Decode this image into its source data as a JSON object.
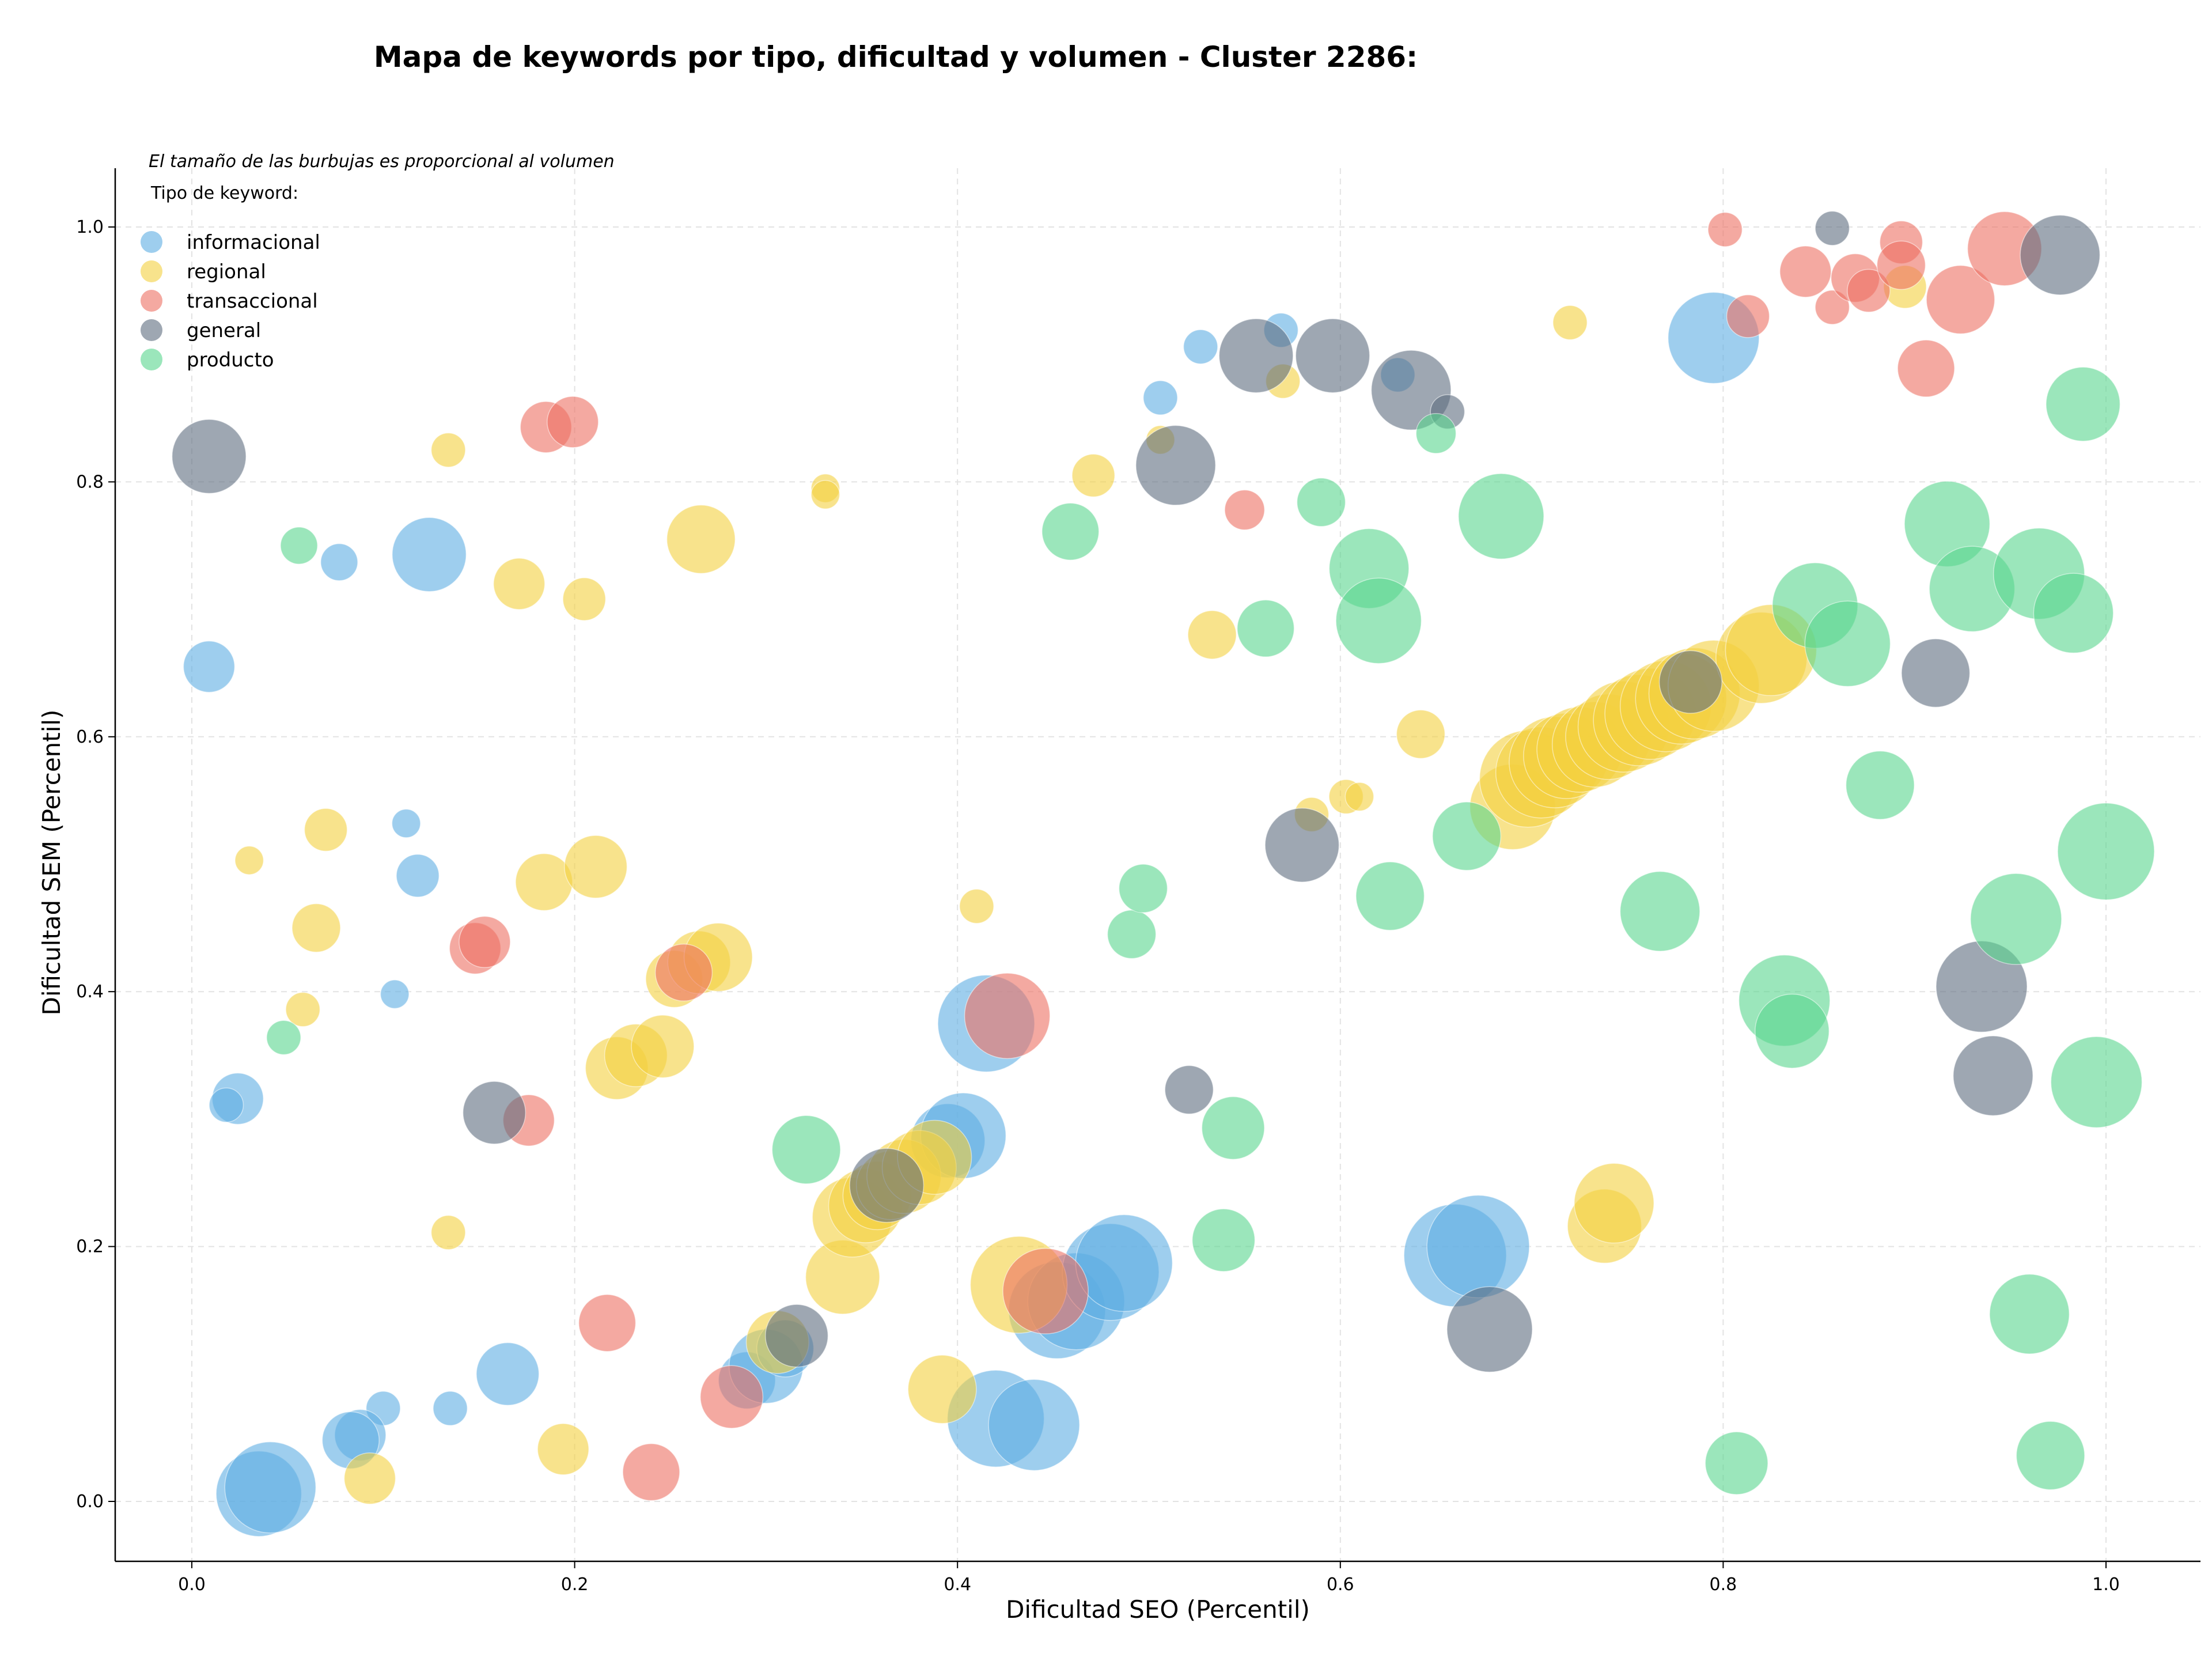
{
  "chart_data": {
    "type": "scatter",
    "title": "Mapa de keywords por tipo, dificultad y volumen - Cluster 2286:",
    "xlabel": "Dificultad SEO (Percentil)",
    "ylabel": "Dificultad SEM (Percentil)",
    "xlim": [
      -0.04,
      1.05
    ],
    "ylim": [
      -0.04,
      1.045
    ],
    "xticks": [
      "0.0",
      "0.2",
      "0.4",
      "0.6",
      "0.8",
      "1.0"
    ],
    "yticks": [
      "0.0",
      "0.2",
      "0.4",
      "0.6",
      "0.8",
      "1.0"
    ],
    "grid": true,
    "annotation": "El tamaño de las burbujas es proporcional al volumen",
    "legend_title": "Tipo de keyword:",
    "legend_position": "top-left",
    "series": [
      {
        "name": "informacional",
        "color": "#5DADE2",
        "points": [
          [
            0.009,
            0.655,
            18
          ],
          [
            0.077,
            0.737,
            13
          ],
          [
            0.124,
            0.743,
            26
          ],
          [
            0.112,
            0.532,
            10
          ],
          [
            0.118,
            0.491,
            15
          ],
          [
            0.106,
            0.398,
            10
          ],
          [
            0.024,
            0.316,
            18
          ],
          [
            0.018,
            0.311,
            12
          ],
          [
            0.1,
            0.073,
            12
          ],
          [
            0.088,
            0.052,
            18
          ],
          [
            0.083,
            0.048,
            20
          ],
          [
            0.135,
            0.073,
            12
          ],
          [
            0.165,
            0.1,
            22
          ],
          [
            0.035,
            0.006,
            30
          ],
          [
            0.041,
            0.011,
            32
          ],
          [
            0.29,
            0.095,
            20
          ],
          [
            0.3,
            0.106,
            26
          ],
          [
            0.31,
            0.12,
            20
          ],
          [
            0.395,
            0.283,
            26
          ],
          [
            0.403,
            0.287,
            30
          ],
          [
            0.415,
            0.375,
            34
          ],
          [
            0.42,
            0.065,
            34
          ],
          [
            0.44,
            0.06,
            32
          ],
          [
            0.452,
            0.15,
            34
          ],
          [
            0.462,
            0.157,
            34
          ],
          [
            0.48,
            0.18,
            34
          ],
          [
            0.487,
            0.187,
            34
          ],
          [
            0.66,
            0.193,
            36
          ],
          [
            0.672,
            0.2,
            36
          ],
          [
            0.506,
            0.866,
            12
          ],
          [
            0.527,
            0.906,
            12
          ],
          [
            0.569,
            0.919,
            12
          ],
          [
            0.63,
            0.884,
            12
          ],
          [
            0.795,
            0.913,
            32
          ]
        ]
      },
      {
        "name": "regional",
        "color": "#F4D03F",
        "points": [
          [
            0.134,
            0.825,
            12
          ],
          [
            0.171,
            0.72,
            18
          ],
          [
            0.205,
            0.708,
            15
          ],
          [
            0.266,
            0.755,
            24
          ],
          [
            0.331,
            0.795,
            10
          ],
          [
            0.331,
            0.79,
            10
          ],
          [
            0.07,
            0.527,
            15
          ],
          [
            0.03,
            0.503,
            10
          ],
          [
            0.065,
            0.45,
            17
          ],
          [
            0.058,
            0.386,
            12
          ],
          [
            0.184,
            0.486,
            20
          ],
          [
            0.211,
            0.498,
            22
          ],
          [
            0.134,
            0.211,
            12
          ],
          [
            0.093,
            0.018,
            18
          ],
          [
            0.194,
            0.041,
            18
          ],
          [
            0.222,
            0.34,
            22
          ],
          [
            0.232,
            0.35,
            22
          ],
          [
            0.246,
            0.357,
            22
          ],
          [
            0.252,
            0.41,
            20
          ],
          [
            0.265,
            0.423,
            22
          ],
          [
            0.275,
            0.427,
            24
          ],
          [
            0.34,
            0.176,
            26
          ],
          [
            0.345,
            0.223,
            28
          ],
          [
            0.352,
            0.232,
            26
          ],
          [
            0.358,
            0.24,
            24
          ],
          [
            0.365,
            0.248,
            24
          ],
          [
            0.372,
            0.255,
            26
          ],
          [
            0.38,
            0.262,
            26
          ],
          [
            0.388,
            0.27,
            26
          ],
          [
            0.306,
            0.125,
            22
          ],
          [
            0.392,
            0.088,
            24
          ],
          [
            0.41,
            0.467,
            12
          ],
          [
            0.432,
            0.17,
            34
          ],
          [
            0.471,
            0.805,
            15
          ],
          [
            0.506,
            0.833,
            10
          ],
          [
            0.533,
            0.68,
            17
          ],
          [
            0.57,
            0.879,
            12
          ],
          [
            0.585,
            0.539,
            12
          ],
          [
            0.603,
            0.553,
            12
          ],
          [
            0.61,
            0.553,
            10
          ],
          [
            0.642,
            0.602,
            17
          ],
          [
            0.69,
            0.545,
            30
          ],
          [
            0.698,
            0.567,
            34
          ],
          [
            0.705,
            0.572,
            32
          ],
          [
            0.712,
            0.58,
            32
          ],
          [
            0.718,
            0.585,
            30
          ],
          [
            0.725,
            0.59,
            30
          ],
          [
            0.733,
            0.594,
            30
          ],
          [
            0.74,
            0.6,
            30
          ],
          [
            0.748,
            0.608,
            32
          ],
          [
            0.756,
            0.613,
            32
          ],
          [
            0.762,
            0.618,
            32
          ],
          [
            0.77,
            0.624,
            32
          ],
          [
            0.778,
            0.63,
            32
          ],
          [
            0.785,
            0.634,
            32
          ],
          [
            0.795,
            0.64,
            32
          ],
          [
            0.82,
            0.662,
            32
          ],
          [
            0.825,
            0.668,
            32
          ],
          [
            0.72,
            0.925,
            12
          ],
          [
            0.738,
            0.216,
            26
          ],
          [
            0.743,
            0.234,
            28
          ],
          [
            0.895,
            0.953,
            15
          ]
        ]
      },
      {
        "name": "transaccional",
        "color": "#EC7063",
        "points": [
          [
            0.185,
            0.843,
            18
          ],
          [
            0.199,
            0.847,
            18
          ],
          [
            0.148,
            0.434,
            18
          ],
          [
            0.153,
            0.439,
            18
          ],
          [
            0.176,
            0.299,
            18
          ],
          [
            0.217,
            0.14,
            20
          ],
          [
            0.24,
            0.023,
            20
          ],
          [
            0.257,
            0.415,
            20
          ],
          [
            0.282,
            0.082,
            22
          ],
          [
            0.426,
            0.381,
            30
          ],
          [
            0.446,
            0.165,
            30
          ],
          [
            0.55,
            0.778,
            14
          ],
          [
            0.801,
            0.998,
            12
          ],
          [
            0.813,
            0.93,
            15
          ],
          [
            0.843,
            0.965,
            18
          ],
          [
            0.857,
            0.937,
            12
          ],
          [
            0.869,
            0.96,
            17
          ],
          [
            0.876,
            0.95,
            15
          ],
          [
            0.893,
            0.988,
            15
          ],
          [
            0.893,
            0.97,
            17
          ],
          [
            0.906,
            0.889,
            20
          ],
          [
            0.924,
            0.943,
            24
          ],
          [
            0.947,
            0.983,
            26
          ]
        ]
      },
      {
        "name": "general",
        "color": "#5D6D7E",
        "points": [
          [
            0.009,
            0.82,
            26
          ],
          [
            0.158,
            0.305,
            22
          ],
          [
            0.316,
            0.13,
            22
          ],
          [
            0.363,
            0.248,
            26
          ],
          [
            0.514,
            0.813,
            28
          ],
          [
            0.521,
            0.323,
            17
          ],
          [
            0.556,
            0.899,
            26
          ],
          [
            0.596,
            0.899,
            26
          ],
          [
            0.58,
            0.515,
            26
          ],
          [
            0.637,
            0.872,
            28
          ],
          [
            0.656,
            0.855,
            12
          ],
          [
            0.678,
            0.135,
            30
          ],
          [
            0.783,
            0.643,
            22
          ],
          [
            0.857,
            0.999,
            12
          ],
          [
            0.911,
            0.65,
            24
          ],
          [
            0.935,
            0.404,
            32
          ],
          [
            0.941,
            0.334,
            28
          ],
          [
            0.976,
            0.978,
            28
          ]
        ]
      },
      {
        "name": "producto",
        "color": "#58D68D",
        "points": [
          [
            0.056,
            0.75,
            13
          ],
          [
            0.048,
            0.364,
            12
          ],
          [
            0.321,
            0.276,
            24
          ],
          [
            0.459,
            0.761,
            20
          ],
          [
            0.491,
            0.445,
            17
          ],
          [
            0.497,
            0.481,
            17
          ],
          [
            0.539,
            0.205,
            22
          ],
          [
            0.544,
            0.293,
            22
          ],
          [
            0.561,
            0.685,
            20
          ],
          [
            0.59,
            0.784,
            17
          ],
          [
            0.615,
            0.732,
            28
          ],
          [
            0.62,
            0.691,
            30
          ],
          [
            0.626,
            0.475,
            24
          ],
          [
            0.65,
            0.838,
            14
          ],
          [
            0.666,
            0.522,
            24
          ],
          [
            0.684,
            0.773,
            30
          ],
          [
            0.767,
            0.463,
            28
          ],
          [
            0.807,
            0.03,
            22
          ],
          [
            0.832,
            0.393,
            32
          ],
          [
            0.836,
            0.369,
            26
          ],
          [
            0.848,
            0.703,
            30
          ],
          [
            0.865,
            0.673,
            30
          ],
          [
            0.882,
            0.562,
            24
          ],
          [
            0.917,
            0.767,
            30
          ],
          [
            0.93,
            0.716,
            30
          ],
          [
            0.953,
            0.457,
            32
          ],
          [
            0.96,
            0.147,
            28
          ],
          [
            0.965,
            0.728,
            32
          ],
          [
            0.971,
            0.036,
            24
          ],
          [
            0.983,
            0.697,
            28
          ],
          [
            0.988,
            0.861,
            26
          ],
          [
            0.995,
            0.329,
            32
          ],
          [
            1.0,
            0.51,
            34
          ]
        ]
      }
    ]
  }
}
